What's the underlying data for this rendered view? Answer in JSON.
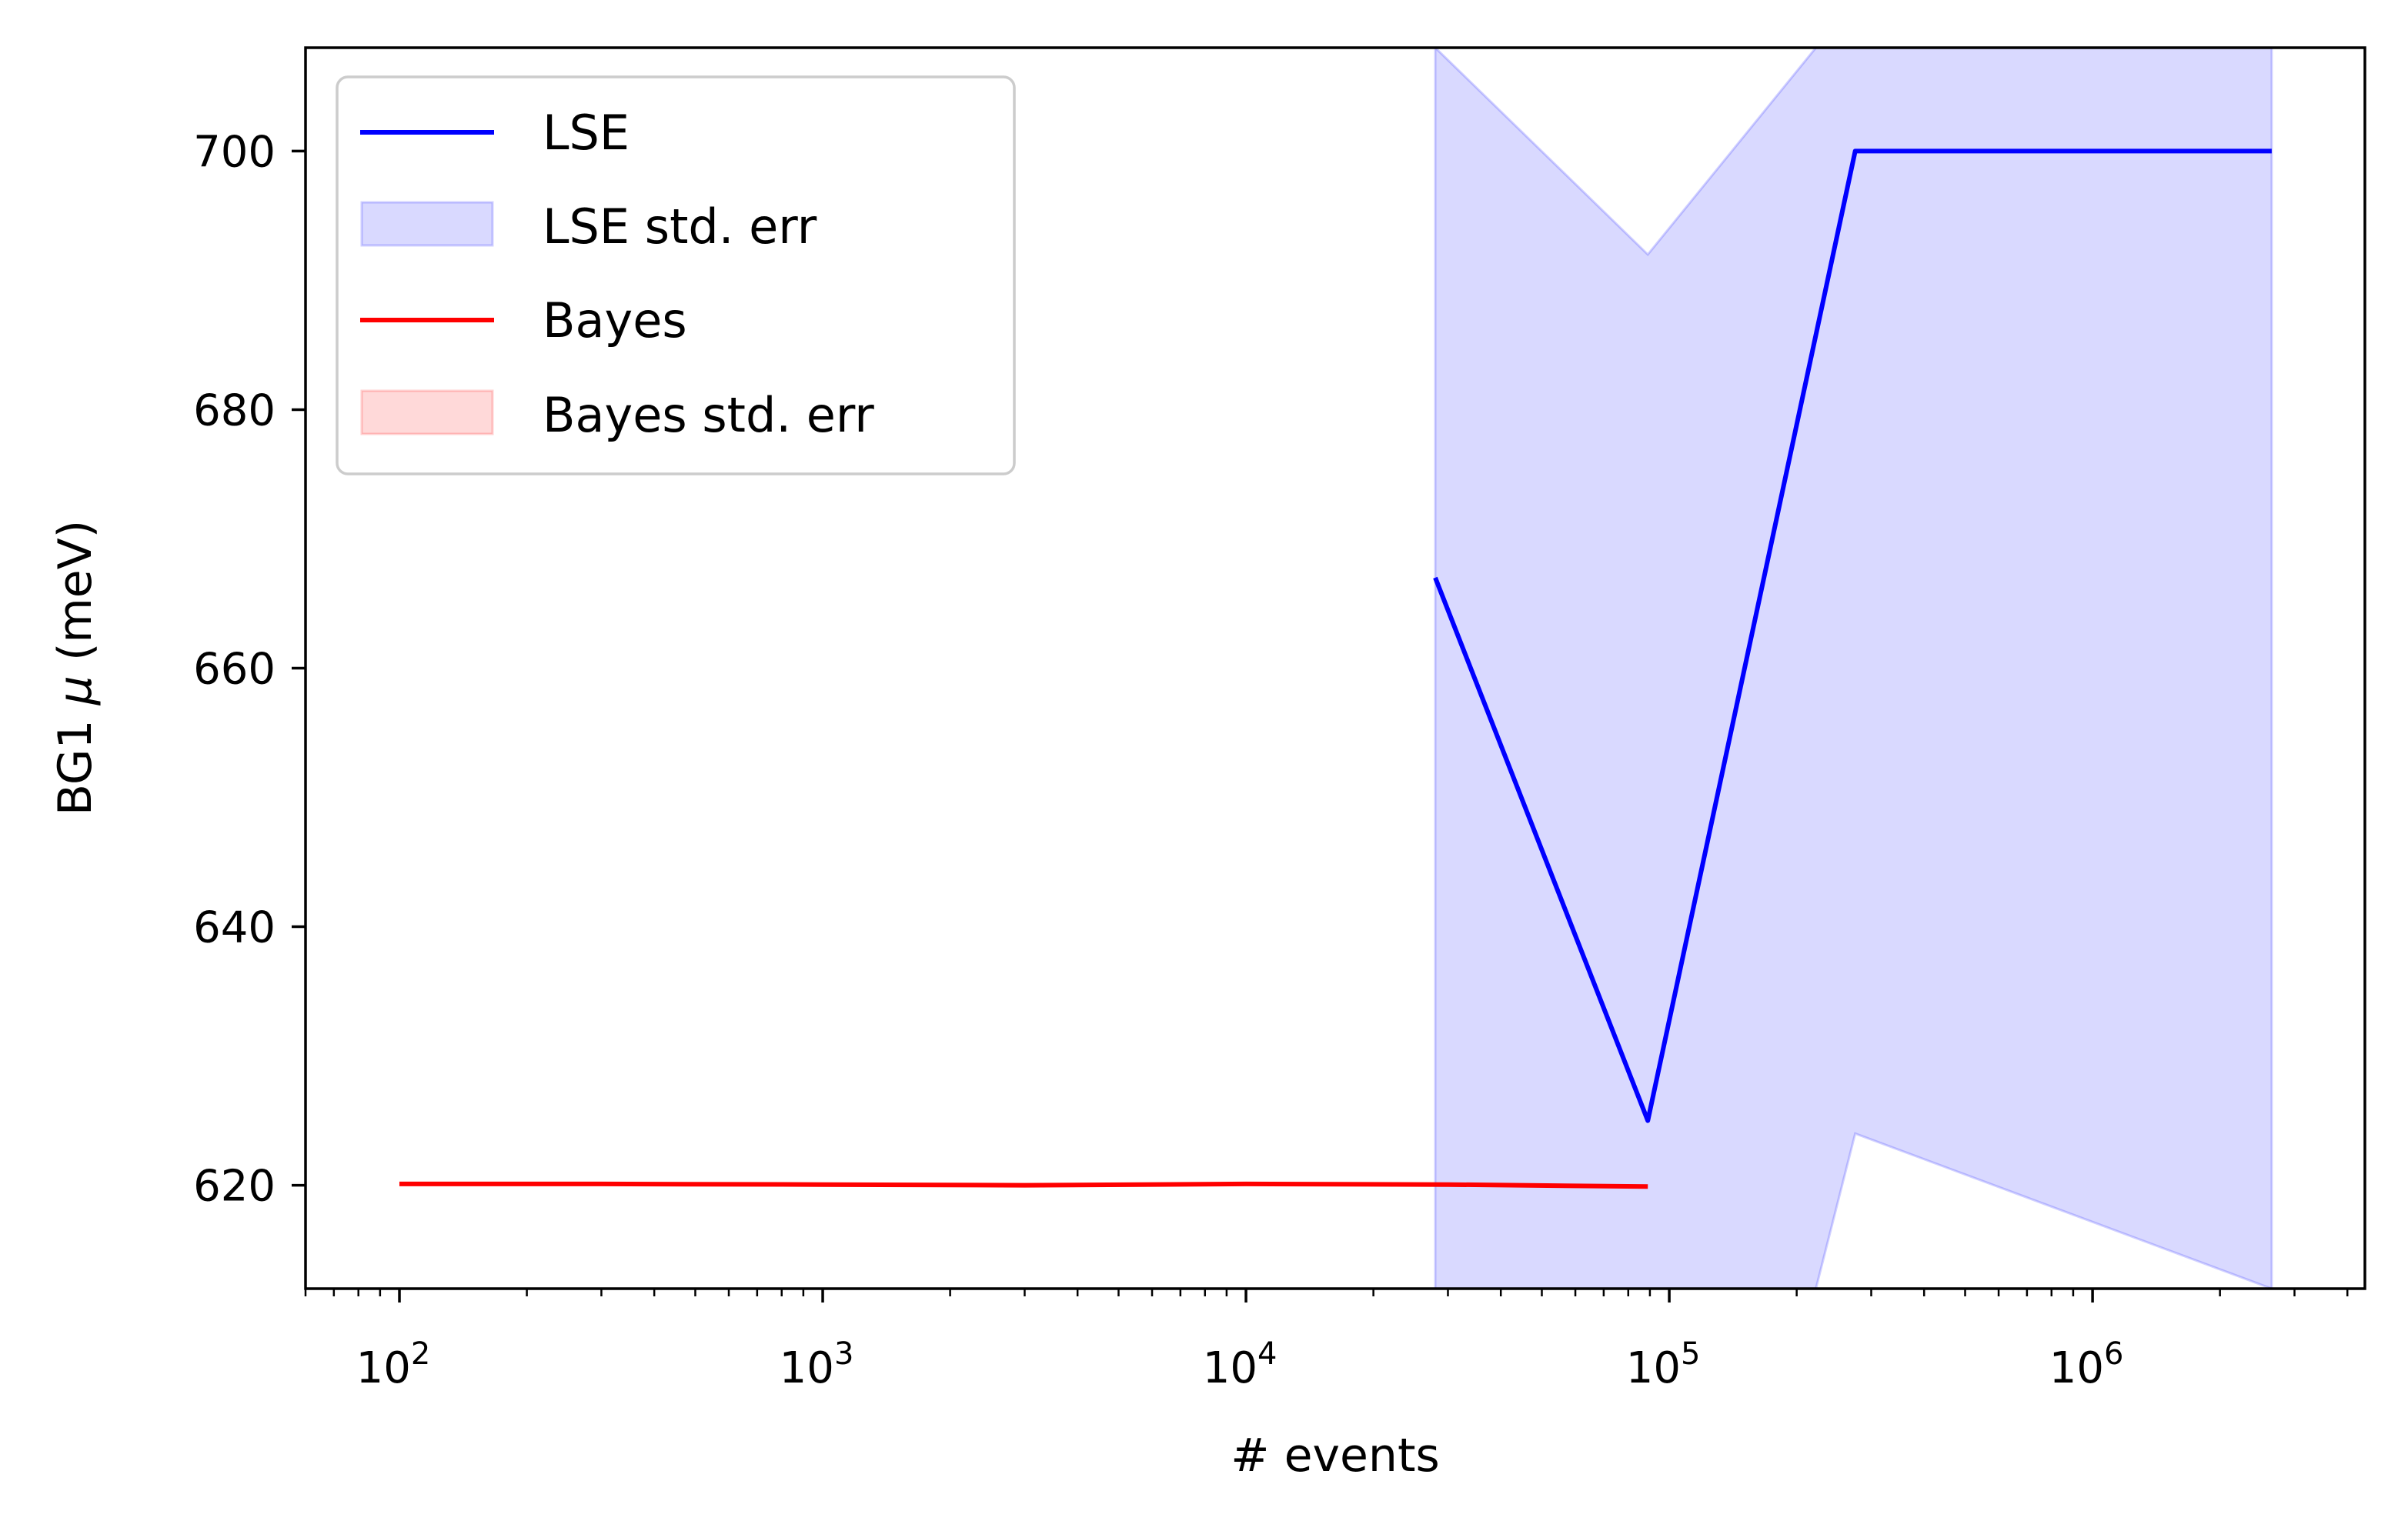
{
  "chart_data": {
    "type": "line",
    "xlabel": "# events",
    "ylabel": "BG1 μ (meV)",
    "ylabel_parts": {
      "before": "BG1 ",
      "symbol": "μ",
      "after": " (meV)"
    },
    "x_scale": "log",
    "xlim": [
      60,
      4400000
    ],
    "ylim": [
      612,
      708
    ],
    "x_ticks": [
      {
        "value": 100,
        "base": "10",
        "exp": "2"
      },
      {
        "value": 1000,
        "base": "10",
        "exp": "3"
      },
      {
        "value": 10000,
        "base": "10",
        "exp": "4"
      },
      {
        "value": 100000,
        "base": "10",
        "exp": "5"
      },
      {
        "value": 1000000,
        "base": "10",
        "exp": "6"
      }
    ],
    "y_ticks": [
      "620",
      "640",
      "660",
      "680",
      "700"
    ],
    "grid": false,
    "legend_position": "top-left",
    "series": [
      {
        "name": "LSE",
        "kind": "line",
        "color": "#0000ff",
        "points": [
          {
            "x": 28000,
            "y": 667
          },
          {
            "x": 89000,
            "y": 625
          },
          {
            "x": 275000,
            "y": 700
          },
          {
            "x": 2650000,
            "y": 700
          }
        ]
      },
      {
        "name": "LSE std. err",
        "kind": "band",
        "color": "#0000ff",
        "opacity": 0.15,
        "points": [
          {
            "x": 28000,
            "lower": 612,
            "upper": 708
          },
          {
            "x": 89000,
            "lower": 612,
            "upper": 692
          },
          {
            "x": 222000,
            "lower": 612,
            "upper": 708
          },
          {
            "x": 275000,
            "lower": 624,
            "upper": 708
          },
          {
            "x": 2650000,
            "lower": 612,
            "upper": 708
          }
        ]
      },
      {
        "name": "Bayes",
        "kind": "line",
        "color": "#ff0000",
        "points": [
          {
            "x": 100,
            "y": 620.1
          },
          {
            "x": 300,
            "y": 620.1
          },
          {
            "x": 1000,
            "y": 620.05
          },
          {
            "x": 3000,
            "y": 620.0
          },
          {
            "x": 10000,
            "y": 620.1
          },
          {
            "x": 30000,
            "y": 620.05
          },
          {
            "x": 89000,
            "y": 619.9
          }
        ]
      },
      {
        "name": "Bayes std. err",
        "kind": "band",
        "color": "#ff0000",
        "opacity": 0.15,
        "points": []
      }
    ]
  }
}
